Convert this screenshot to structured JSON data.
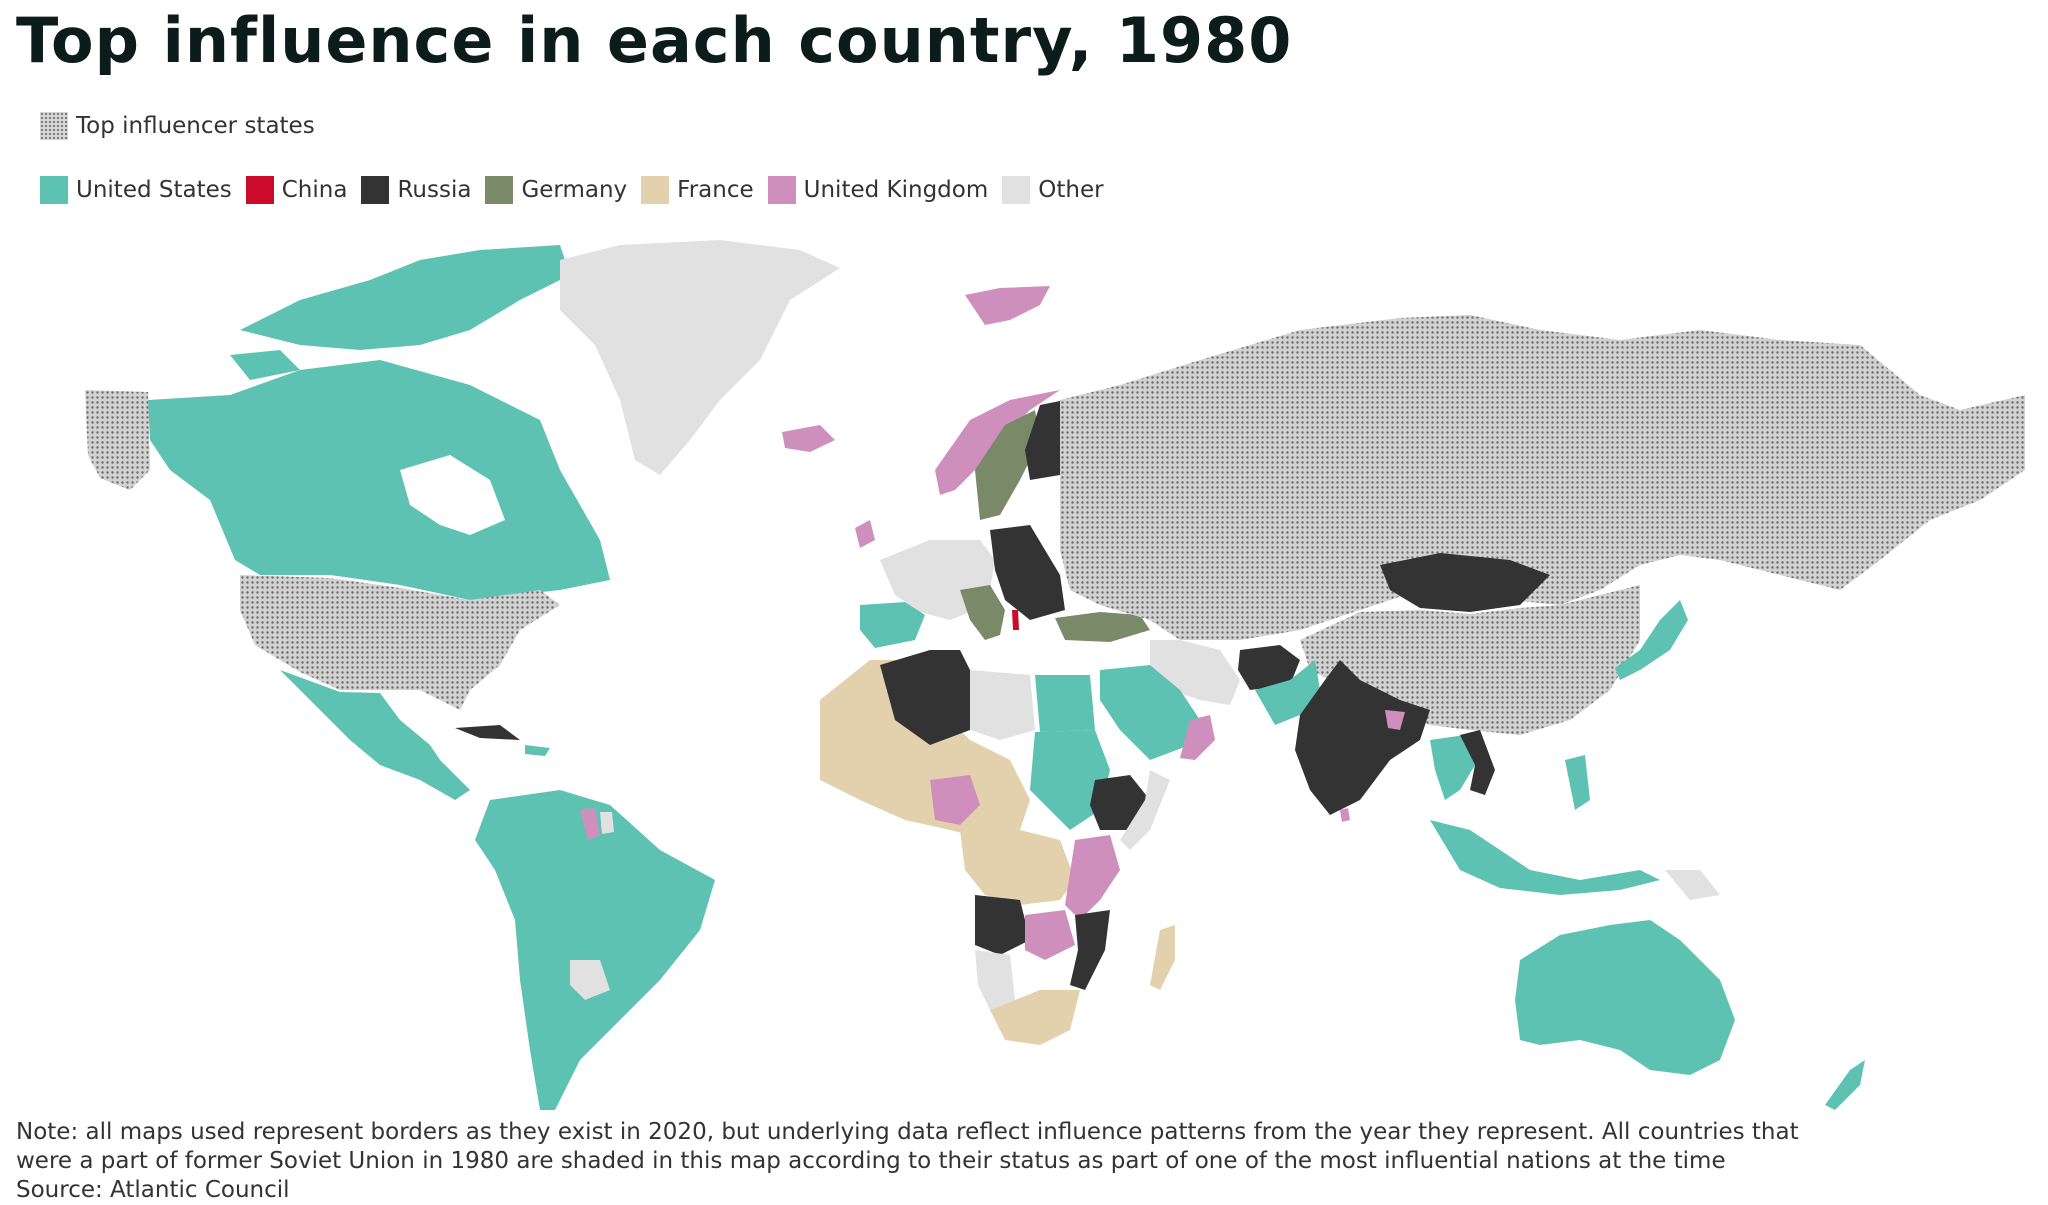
{
  "title": "Top influence in each country, 1980",
  "influencer_legend": {
    "label": "Top influencer states"
  },
  "legend": [
    {
      "label": "United States",
      "color": "#5ec2b2"
    },
    {
      "label": "China",
      "color": "#cc0a2b"
    },
    {
      "label": "Russia",
      "color": "#333333"
    },
    {
      "label": "Germany",
      "color": "#7a8a68"
    },
    {
      "label": "France",
      "color": "#e3d0ad"
    },
    {
      "label": "United Kingdom",
      "color": "#cf8fbd"
    },
    {
      "label": "Other",
      "color": "#e1e1e1"
    }
  ],
  "footer": {
    "note_line1": "Note: all maps used represent borders as they exist in 2020, but underlying data reflect influence patterns from the year they represent. All countries that",
    "note_line2": "were a part of former Soviet Union in 1980 are shaded in this map according to their status as part of one of the most influential nations at the time",
    "source": "Source: Atlantic Council"
  }
}
